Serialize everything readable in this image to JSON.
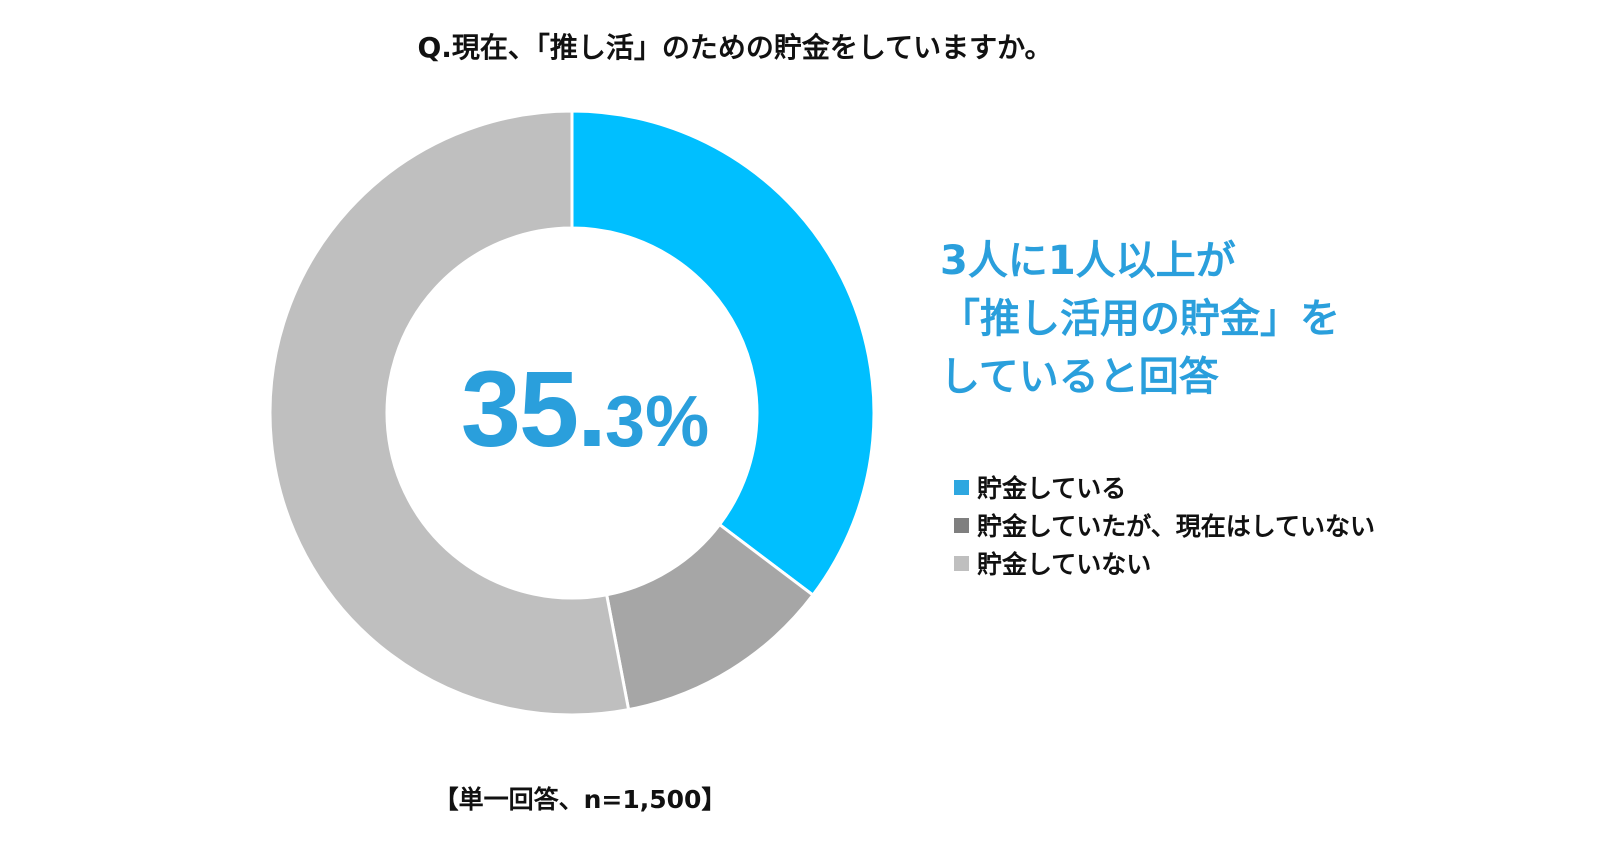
{
  "title": "Q.現在、「推し活」のための貯金をしていますか。",
  "center_label": {
    "integer": "35.",
    "fraction": "3%"
  },
  "headline": [
    "3人に1人以上が",
    "「推し活用の貯金」を",
    "していると回答"
  ],
  "note": "【単一回答、n=1,500】",
  "colors": {
    "accent": "#2a9fdc"
  },
  "chart_data": {
    "type": "pie",
    "donut": true,
    "title": "Q.現在、「推し活」のための貯金をしていますか。",
    "start": "12 o'clock, clockwise",
    "legend": "right",
    "series": [
      {
        "name": "貯金している",
        "value": 35.3,
        "color": "#00bfff",
        "legend_color": "#2ea7e0"
      },
      {
        "name": "貯金していたが、現在はしていない",
        "value": 11.7,
        "color": "#a6a6a6",
        "legend_color": "#7f7f7f"
      },
      {
        "name": "貯金していない",
        "value": 53.0,
        "color": "#bfbfbf",
        "legend_color": "#bfbfbf"
      }
    ]
  }
}
